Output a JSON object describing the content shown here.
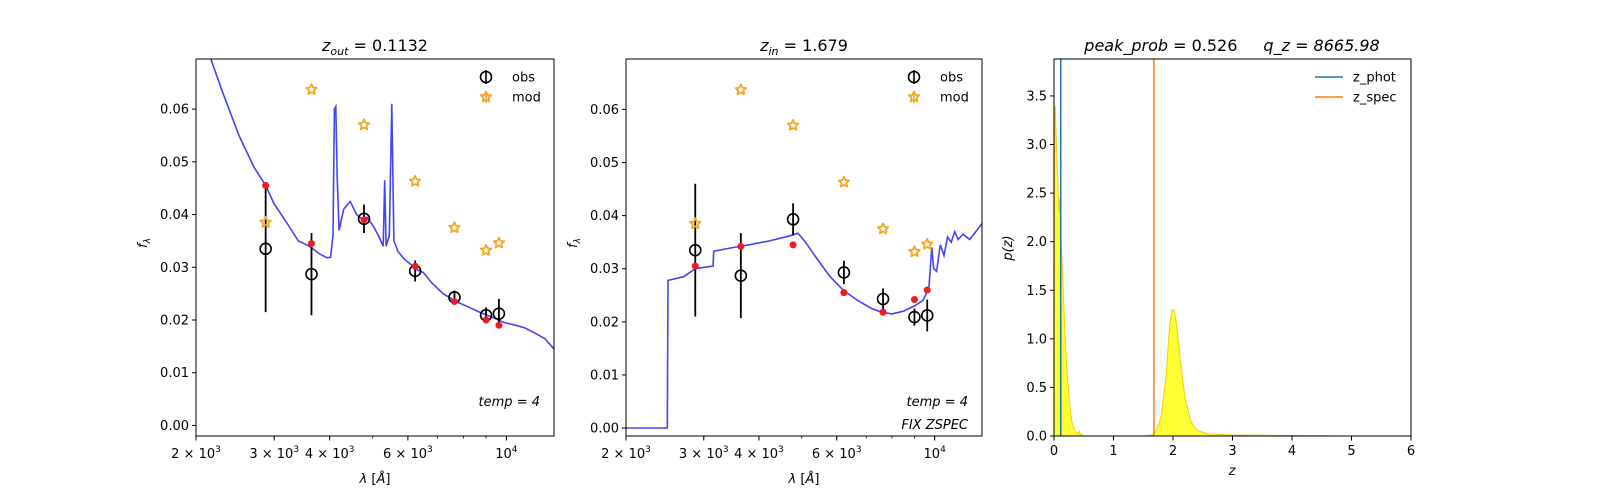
{
  "chart_data": [
    {
      "type": "line",
      "title": {
        "base": "z",
        "sub": "out",
        "rest": " = 0.1132"
      },
      "xlabel": "λ [Å]",
      "ylabel": "f",
      "ylabel_sub": "λ",
      "xscale": "log",
      "xlim": [
        2000,
        12800
      ],
      "ylim": [
        -0.002,
        0.0695
      ],
      "xticks": [
        {
          "value": 2000,
          "label": "2 × 10",
          "exp": "3"
        },
        {
          "value": 3000,
          "label": "3 × 10",
          "exp": "3"
        },
        {
          "value": 4000,
          "label": "4 × 10",
          "exp": "3"
        },
        {
          "value": 6000,
          "label": "6 × 10",
          "exp": "3"
        },
        {
          "value": 10000,
          "label": "10",
          "exp": "4"
        }
      ],
      "yticks": [
        0.0,
        0.01,
        0.02,
        0.03,
        0.04,
        0.05,
        0.06
      ],
      "ytick_labels": [
        "0.00",
        "0.01",
        "0.02",
        "0.03",
        "0.04",
        "0.05",
        "0.06"
      ],
      "legend": {
        "position": "top-right",
        "entries": [
          "obs",
          "mod"
        ]
      },
      "annotation": [
        "temp = 4"
      ],
      "sed": [
        [
          2150,
          0.07
        ],
        [
          2300,
          0.063
        ],
        [
          2500,
          0.055
        ],
        [
          2700,
          0.049
        ],
        [
          2870,
          0.0455
        ],
        [
          3000,
          0.042
        ],
        [
          3200,
          0.0385
        ],
        [
          3400,
          0.035
        ],
        [
          3600,
          0.034
        ],
        [
          3800,
          0.0325
        ],
        [
          3950,
          0.0318
        ],
        [
          4020,
          0.0319
        ],
        [
          4070,
          0.036
        ],
        [
          4100,
          0.06
        ],
        [
          4130,
          0.0605
        ],
        [
          4160,
          0.047
        ],
        [
          4200,
          0.037
        ],
        [
          4300,
          0.041
        ],
        [
          4450,
          0.0425
        ],
        [
          4600,
          0.04
        ],
        [
          4750,
          0.039
        ],
        [
          4850,
          0.0395
        ],
        [
          5000,
          0.038
        ],
        [
          5150,
          0.036
        ],
        [
          5280,
          0.034
        ],
        [
          5320,
          0.0465
        ],
        [
          5360,
          0.034
        ],
        [
          5450,
          0.036
        ],
        [
          5520,
          0.061
        ],
        [
          5580,
          0.035
        ],
        [
          5700,
          0.033
        ],
        [
          5900,
          0.0315
        ],
        [
          6100,
          0.0305
        ],
        [
          6300,
          0.0295
        ],
        [
          6500,
          0.029
        ],
        [
          6800,
          0.027
        ],
        [
          7200,
          0.025
        ],
        [
          7700,
          0.0235
        ],
        [
          8200,
          0.0225
        ],
        [
          8700,
          0.0215
        ],
        [
          9300,
          0.0205
        ],
        [
          9900,
          0.0195
        ],
        [
          10500,
          0.019
        ],
        [
          11000,
          0.0185
        ],
        [
          11600,
          0.0175
        ],
        [
          12200,
          0.0165
        ],
        [
          12800,
          0.0145
        ]
      ],
      "obs": [
        {
          "x": 2870,
          "y": 0.0335,
          "err": 0.012
        },
        {
          "x": 3640,
          "y": 0.0287,
          "err": 0.0078
        },
        {
          "x": 4780,
          "y": 0.0392,
          "err": 0.0027
        },
        {
          "x": 6230,
          "y": 0.0293,
          "err": 0.002
        },
        {
          "x": 7640,
          "y": 0.0243,
          "err": 0.0013
        },
        {
          "x": 9000,
          "y": 0.0209,
          "err": 0.0015
        },
        {
          "x": 9620,
          "y": 0.0212,
          "err": 0.0028
        }
      ],
      "mod": [
        {
          "x": 2870,
          "y": 0.0385
        },
        {
          "x": 3640,
          "y": 0.0637
        },
        {
          "x": 4780,
          "y": 0.057
        },
        {
          "x": 6230,
          "y": 0.0463
        },
        {
          "x": 7640,
          "y": 0.0375
        },
        {
          "x": 9000,
          "y": 0.0332
        },
        {
          "x": 9620,
          "y": 0.0346
        }
      ],
      "model_phot": [
        {
          "x": 2870,
          "y": 0.0455
        },
        {
          "x": 3640,
          "y": 0.0345
        },
        {
          "x": 4780,
          "y": 0.039
        },
        {
          "x": 6230,
          "y": 0.0302
        },
        {
          "x": 7640,
          "y": 0.0235
        },
        {
          "x": 9000,
          "y": 0.02
        },
        {
          "x": 9620,
          "y": 0.019
        }
      ]
    },
    {
      "type": "line",
      "title": {
        "base": "z",
        "sub": "in",
        "rest": " = 1.679"
      },
      "xlabel": "λ [Å]",
      "ylabel": "f",
      "ylabel_sub": "λ",
      "xscale": "log",
      "xlim": [
        2000,
        12800
      ],
      "ylim": [
        -0.0015,
        0.0695
      ],
      "xticks": [
        {
          "value": 2000,
          "label": "2 × 10",
          "exp": "3"
        },
        {
          "value": 3000,
          "label": "3 × 10",
          "exp": "3"
        },
        {
          "value": 4000,
          "label": "4 × 10",
          "exp": "3"
        },
        {
          "value": 6000,
          "label": "6 × 10",
          "exp": "3"
        },
        {
          "value": 10000,
          "label": "10",
          "exp": "4"
        }
      ],
      "yticks": [
        0.0,
        0.01,
        0.02,
        0.03,
        0.04,
        0.05,
        0.06
      ],
      "ytick_labels": [
        "0.00",
        "0.01",
        "0.02",
        "0.03",
        "0.04",
        "0.05",
        "0.06"
      ],
      "legend": {
        "position": "top-right",
        "entries": [
          "obs",
          "mod"
        ]
      },
      "annotation": [
        "temp = 4",
        "FIX ZSPEC"
      ],
      "sed": [
        [
          2000,
          0.0
        ],
        [
          2480,
          0.0
        ],
        [
          2490,
          0.0278
        ],
        [
          2700,
          0.0285
        ],
        [
          2870,
          0.03
        ],
        [
          3150,
          0.0305
        ],
        [
          3160,
          0.0333
        ],
        [
          3500,
          0.034
        ],
        [
          3800,
          0.0345
        ],
        [
          4200,
          0.0352
        ],
        [
          4700,
          0.0362
        ],
        [
          4900,
          0.0367
        ],
        [
          5100,
          0.035
        ],
        [
          5400,
          0.032
        ],
        [
          5800,
          0.0285
        ],
        [
          6200,
          0.026
        ],
        [
          6700,
          0.024
        ],
        [
          7200,
          0.0225
        ],
        [
          7600,
          0.0218
        ],
        [
          8000,
          0.0215
        ],
        [
          8500,
          0.022
        ],
        [
          9000,
          0.023
        ],
        [
          9400,
          0.024
        ],
        [
          9700,
          0.0262
        ],
        [
          9850,
          0.034
        ],
        [
          9950,
          0.03
        ],
        [
          10100,
          0.0295
        ],
        [
          10300,
          0.0345
        ],
        [
          10500,
          0.0325
        ],
        [
          10700,
          0.036
        ],
        [
          10900,
          0.035
        ],
        [
          11100,
          0.037
        ],
        [
          11300,
          0.0355
        ],
        [
          11600,
          0.0365
        ],
        [
          12000,
          0.0355
        ],
        [
          12400,
          0.037
        ],
        [
          12800,
          0.0385
        ]
      ],
      "obs": [
        {
          "x": 2870,
          "y": 0.0335,
          "err": 0.0125
        },
        {
          "x": 3640,
          "y": 0.0287,
          "err": 0.008
        },
        {
          "x": 4780,
          "y": 0.0393,
          "err": 0.003
        },
        {
          "x": 6230,
          "y": 0.0293,
          "err": 0.0022
        },
        {
          "x": 7640,
          "y": 0.0243,
          "err": 0.002
        },
        {
          "x": 9000,
          "y": 0.0209,
          "err": 0.0016
        },
        {
          "x": 9620,
          "y": 0.0212,
          "err": 0.003
        }
      ],
      "mod": [
        {
          "x": 2870,
          "y": 0.0385
        },
        {
          "x": 3640,
          "y": 0.0637
        },
        {
          "x": 4780,
          "y": 0.057
        },
        {
          "x": 6230,
          "y": 0.0463
        },
        {
          "x": 7640,
          "y": 0.0375
        },
        {
          "x": 9000,
          "y": 0.0332
        },
        {
          "x": 9620,
          "y": 0.0346
        }
      ],
      "model_phot": [
        {
          "x": 2870,
          "y": 0.0305
        },
        {
          "x": 3640,
          "y": 0.0342
        },
        {
          "x": 4780,
          "y": 0.0345
        },
        {
          "x": 6230,
          "y": 0.0255
        },
        {
          "x": 7640,
          "y": 0.0218
        },
        {
          "x": 9000,
          "y": 0.0242
        },
        {
          "x": 9620,
          "y": 0.026
        }
      ]
    },
    {
      "type": "area",
      "title": {
        "base": "peak_prob",
        "sub": "",
        "rest": " = 0.526",
        "extra": "q_z = 8665.98"
      },
      "xlabel": "z",
      "ylabel": "p(z)",
      "xlim": [
        0,
        6
      ],
      "ylim": [
        0,
        3.88
      ],
      "xticks": [
        0,
        1,
        2,
        3,
        4,
        5,
        6
      ],
      "yticks": [
        0.0,
        0.5,
        1.0,
        1.5,
        2.0,
        2.5,
        3.0,
        3.5
      ],
      "ytick_labels": [
        "0.0",
        "0.5",
        "1.0",
        "1.5",
        "2.0",
        "2.5",
        "3.0",
        "3.5"
      ],
      "legend": {
        "position": "top-right",
        "entries": [
          "z_phot",
          "z_spec"
        ]
      },
      "z_phot": 0.1132,
      "z_spec": 1.679,
      "pz": [
        [
          0.0,
          0.0
        ],
        [
          0.01,
          3.2
        ],
        [
          0.02,
          3.4
        ],
        [
          0.04,
          3.0
        ],
        [
          0.06,
          2.7
        ],
        [
          0.08,
          2.3
        ],
        [
          0.1,
          2.45
        ],
        [
          0.12,
          2.0
        ],
        [
          0.15,
          1.6
        ],
        [
          0.18,
          1.1
        ],
        [
          0.22,
          0.65
        ],
        [
          0.26,
          0.35
        ],
        [
          0.3,
          0.15
        ],
        [
          0.35,
          0.05
        ],
        [
          0.4,
          0.02
        ],
        [
          0.42,
          0.05
        ],
        [
          0.44,
          0.02
        ],
        [
          0.5,
          0.0
        ],
        [
          1.5,
          0.0
        ],
        [
          1.65,
          0.01
        ],
        [
          1.72,
          0.05
        ],
        [
          1.8,
          0.2
        ],
        [
          1.88,
          0.6
        ],
        [
          1.94,
          1.1
        ],
        [
          1.98,
          1.3
        ],
        [
          2.02,
          1.3
        ],
        [
          2.06,
          1.15
        ],
        [
          2.12,
          0.8
        ],
        [
          2.2,
          0.4
        ],
        [
          2.3,
          0.15
        ],
        [
          2.4,
          0.06
        ],
        [
          2.6,
          0.02
        ],
        [
          3.0,
          0.01
        ],
        [
          4.0,
          0.005
        ],
        [
          5.0,
          0.0
        ]
      ]
    }
  ],
  "colors": {
    "sed": "#3b3bef",
    "obs": "#000000",
    "mod": "#f5a623",
    "model_phot": "#ee1c1c",
    "z_phot": "#1f77b4",
    "z_spec": "#ff7f0e",
    "pz_fill": "#ffff33",
    "pz_edge": "#e8d21a"
  }
}
